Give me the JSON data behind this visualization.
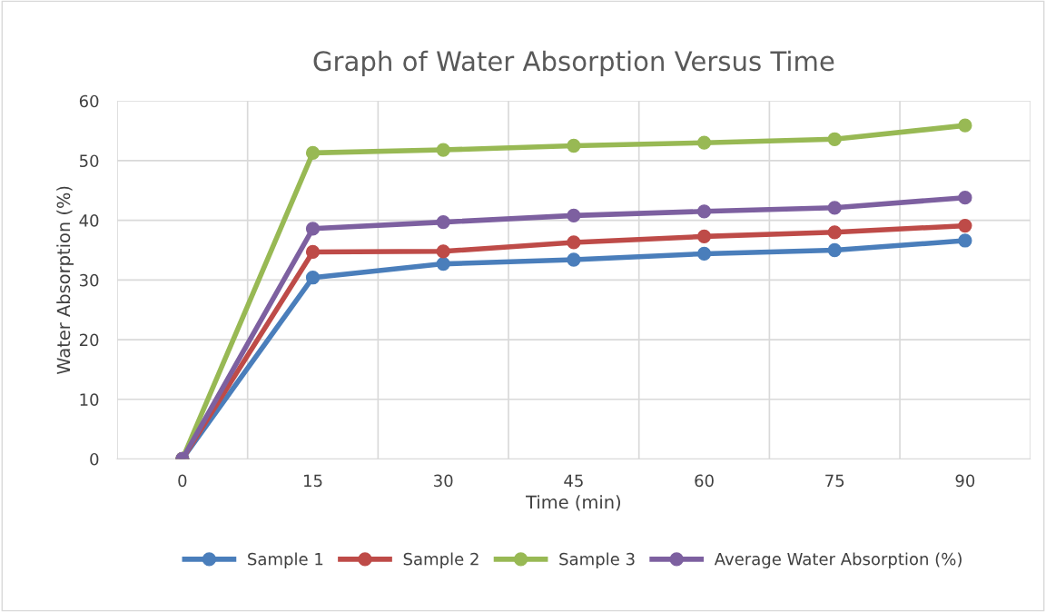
{
  "chart_data": {
    "type": "line",
    "title": "Graph of Water Absorption Versus Time",
    "xlabel": "Time (min)",
    "ylabel": "Water Absorption (%)",
    "categories": [
      "0",
      "15",
      "30",
      "45",
      "60",
      "75",
      "90"
    ],
    "series": [
      {
        "name": "Sample 1",
        "color": "#4a7ebb",
        "values": [
          0,
          30.4,
          32.7,
          33.4,
          34.4,
          35.0,
          36.6
        ]
      },
      {
        "name": "Sample 2",
        "color": "#be4b48",
        "values": [
          0,
          34.7,
          34.8,
          36.3,
          37.3,
          38.0,
          39.1
        ]
      },
      {
        "name": "Sample 3",
        "color": "#98b954",
        "values": [
          0,
          51.3,
          51.8,
          52.5,
          53.0,
          53.6,
          55.9
        ]
      },
      {
        "name": "Average Water Absorption (%)",
        "color": "#7d60a0",
        "values": [
          0,
          38.6,
          39.7,
          40.8,
          41.5,
          42.1,
          43.8
        ]
      }
    ],
    "ylim": [
      0,
      60
    ],
    "yticks": [
      0,
      10,
      20,
      30,
      40,
      50,
      60
    ],
    "grid": true,
    "legend": "bottom",
    "marker": "circle",
    "line_style": "solid"
  }
}
